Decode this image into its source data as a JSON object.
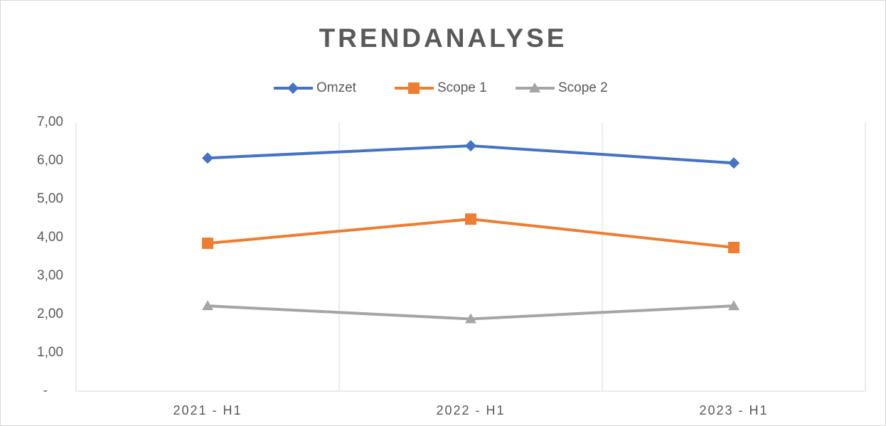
{
  "chart_data": {
    "type": "line",
    "title": "TRENDANALYSE",
    "categories": [
      "2021 - H1",
      "2022 - H1",
      "2023 - H1"
    ],
    "series": [
      {
        "name": "Omzet",
        "color": "#4472c4",
        "marker": "diamond",
        "values": [
          6.07,
          6.39,
          5.94
        ]
      },
      {
        "name": "Scope 1",
        "color": "#ed7d31",
        "marker": "square",
        "values": [
          3.85,
          4.48,
          3.74
        ]
      },
      {
        "name": "Scope 2",
        "color": "#a5a5a5",
        "marker": "triangle",
        "values": [
          2.22,
          1.88,
          2.22
        ]
      }
    ],
    "ylim": [
      0,
      7
    ],
    "yticks": [
      {
        "value": 0,
        "label": "-"
      },
      {
        "value": 1,
        "label": "1,00"
      },
      {
        "value": 2,
        "label": "2,00"
      },
      {
        "value": 3,
        "label": "3,00"
      },
      {
        "value": 4,
        "label": "4,00"
      },
      {
        "value": 5,
        "label": "5,00"
      },
      {
        "value": 6,
        "label": "6,00"
      },
      {
        "value": 7,
        "label": "7,00"
      }
    ],
    "grid": "x",
    "legend": "top"
  }
}
